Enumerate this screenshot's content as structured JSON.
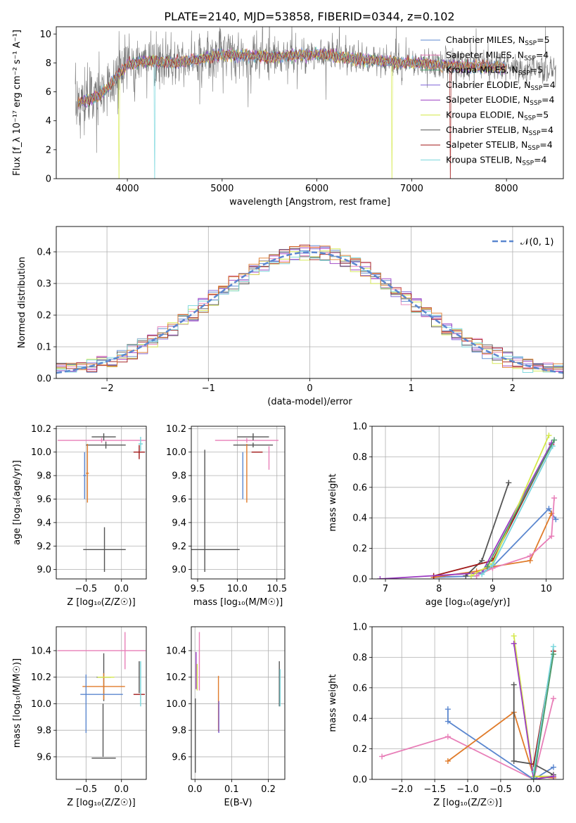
{
  "title": "PLATE=2140, MJD=53858, FIBERID=0344, z=0.102",
  "colors": {
    "Chabrier MILES": "#5b87cf",
    "Salpeter MILES": "#e87fb8",
    "Kroupa MILES": "#4d9a6a",
    "Chabrier ELODIE": "#7b5fd6",
    "Salpeter ELODIE": "#9b3bc2",
    "Kroupa ELODIE": "#d4e84a",
    "Chabrier STELIB": "#555555",
    "Salpeter STELIB": "#a01818",
    "Kroupa STELIB": "#77d6dc",
    "gaussian": "#5b87cf",
    "orange": "#e07b2a"
  },
  "chart_data": [
    {
      "type": "line",
      "id": "spectrum",
      "xlabel": "wavelength [Angstrom, rest frame]",
      "ylabel": "Flux [f_λ 10⁻¹⁷ erg cm⁻² s⁻¹ A⁻¹]",
      "xlim": [
        3250,
        8600
      ],
      "ylim": [
        0,
        10.5
      ],
      "xticks": [
        4000,
        5000,
        6000,
        7000,
        8000
      ],
      "yticks": [
        0,
        2,
        4,
        6,
        8,
        10
      ],
      "legend_position": "right",
      "legend": [
        "Chabrier MILES, NSSP=5",
        "Salpeter MILES, NSSP=4",
        "Kroupa MILES, NSSP=5",
        "Chabrier ELODIE, NSSP=4",
        "Salpeter ELODIE, NSSP=4",
        "Kroupa ELODIE, NSSP=5",
        "Chabrier STELIB, NSSP=4",
        "Salpeter STELIB, NSSP=4",
        "Kroupa STELIB, NSSP=4"
      ],
      "continuum": {
        "x": [
          3450,
          3600,
          3700,
          3800,
          3900,
          4000,
          4200,
          4500,
          4800,
          5000,
          5500,
          6000,
          6500,
          7000,
          7400,
          8000,
          8500
        ],
        "y": [
          5.2,
          5.4,
          5.7,
          6.3,
          7.2,
          7.9,
          8.1,
          8.0,
          8.3,
          8.6,
          8.4,
          8.6,
          8.2,
          8.0,
          7.8,
          7.7,
          7.5
        ]
      }
    },
    {
      "type": "line",
      "id": "residuals",
      "xlabel": "(data-model)/error",
      "ylabel": "Normed distribution",
      "xlim": [
        -2.5,
        2.5
      ],
      "ylim": [
        0,
        0.48
      ],
      "xticks": [
        -2,
        -1,
        0,
        1,
        2
      ],
      "yticks": [
        0.0,
        0.1,
        0.2,
        0.3,
        0.4
      ],
      "grid": true,
      "legend": [
        "𝒩(0, 1)"
      ],
      "legend_position": "top-right"
    },
    {
      "type": "scatter",
      "id": "age-vs-Z",
      "xlabel": "Z [log₁₀(Z/Z☉)]",
      "ylabel": "age  [log₁₀(age/yr)]",
      "xlim": [
        -0.92,
        0.35
      ],
      "ylim": [
        8.92,
        10.22
      ],
      "xticks": [
        -0.5,
        0.0
      ],
      "yticks": [
        9.0,
        9.2,
        9.4,
        9.6,
        9.8,
        10.0,
        10.2
      ],
      "grid": true,
      "points": [
        {
          "x": -0.28,
          "y": 10.1,
          "xerr": 0.62,
          "yerr": 0.02,
          "c": "Salpeter MILES"
        },
        {
          "x": -0.25,
          "y": 10.13,
          "xerr": 0.17,
          "yerr": 0.03,
          "c": "Chabrier STELIB"
        },
        {
          "x": -0.22,
          "y": 10.06,
          "xerr": 0.28,
          "yerr": 0.03,
          "c": "Chabrier STELIB"
        },
        {
          "x": -0.24,
          "y": 9.17,
          "xerr": 0.3,
          "yerr": 0.19,
          "c": "Chabrier STELIB"
        },
        {
          "x": -0.52,
          "y": 9.8,
          "xerr": 0.02,
          "yerr": 0.2,
          "c": "Chabrier MILES"
        },
        {
          "x": -0.48,
          "y": 9.82,
          "xerr": 0.02,
          "yerr": 0.25,
          "c": "orange"
        },
        {
          "x": 0.25,
          "y": 10.0,
          "xerr": 0.08,
          "yerr": 0.06,
          "c": "Salpeter STELIB"
        },
        {
          "x": 0.27,
          "y": 10.07,
          "xerr": 0.03,
          "yerr": 0.06,
          "c": "Kroupa STELIB"
        }
      ]
    },
    {
      "type": "scatter",
      "id": "age-vs-mass",
      "xlabel": "mass [log₁₀(M/M☉)]",
      "ylabel": "",
      "xlim": [
        9.42,
        10.6
      ],
      "ylim": [
        8.92,
        10.22
      ],
      "xticks": [
        9.5,
        10.0,
        10.5
      ],
      "yticks": [
        9.0,
        9.2,
        9.4,
        9.6,
        9.8,
        10.0,
        10.2
      ],
      "grid": true,
      "points": [
        {
          "x": 9.58,
          "y": 9.17,
          "xerr": 0.45,
          "yerr": 0.0,
          "c": "Chabrier STELIB"
        },
        {
          "x": 9.59,
          "y": 9.5,
          "xerr": 0.0,
          "yerr": 0.52,
          "c": "Chabrier STELIB"
        },
        {
          "x": 10.12,
          "y": 10.1,
          "xerr": 0.4,
          "yerr": 0.02,
          "c": "Salpeter MILES"
        },
        {
          "x": 10.2,
          "y": 10.13,
          "xerr": 0.2,
          "yerr": 0.03,
          "c": "Chabrier STELIB"
        },
        {
          "x": 10.2,
          "y": 10.06,
          "xerr": 0.25,
          "yerr": 0.02,
          "c": "Chabrier STELIB"
        },
        {
          "x": 10.07,
          "y": 9.8,
          "xerr": 0.0,
          "yerr": 0.2,
          "c": "Chabrier MILES"
        },
        {
          "x": 10.12,
          "y": 9.82,
          "xerr": 0.0,
          "yerr": 0.25,
          "c": "orange"
        },
        {
          "x": 10.25,
          "y": 10.0,
          "xerr": 0.07,
          "yerr": 0.0,
          "c": "Salpeter STELIB"
        },
        {
          "x": 10.4,
          "y": 9.95,
          "xerr": 0.0,
          "yerr": 0.1,
          "c": "Salpeter MILES"
        }
      ]
    },
    {
      "type": "line",
      "id": "mass-weight-vs-age",
      "xlabel": "age  [log₁₀(age/yr)]",
      "ylabel": "mass weight",
      "xlim": [
        6.75,
        10.32
      ],
      "ylim": [
        0,
        1
      ],
      "xticks": [
        7,
        8,
        9,
        10
      ],
      "yticks": [
        0.0,
        0.2,
        0.4,
        0.6,
        0.8,
        1.0
      ],
      "grid": true,
      "series": [
        {
          "c": "Chabrier MILES",
          "x": [
            7.9,
            8.7,
            9.0,
            10.05,
            10.18
          ],
          "y": [
            0.01,
            0.02,
            0.08,
            0.46,
            0.39
          ]
        },
        {
          "c": "orange",
          "x": [
            7.9,
            8.7,
            9.0,
            9.7,
            10.1
          ],
          "y": [
            0.01,
            0.05,
            0.08,
            0.12,
            0.43
          ]
        },
        {
          "c": "Salpeter MILES",
          "x": [
            8.7,
            9.0,
            9.7,
            10.1,
            10.15
          ],
          "y": [
            0.02,
            0.07,
            0.15,
            0.28,
            0.53
          ]
        },
        {
          "c": "Chabrier STELIB",
          "x": [
            8.5,
            8.8,
            9.3
          ],
          "y": [
            0.02,
            0.12,
            0.63
          ]
        },
        {
          "c": "Salpeter STELIB",
          "x": [
            7.9,
            9.0,
            10.1
          ],
          "y": [
            0.02,
            0.12,
            0.88
          ]
        },
        {
          "c": "Salpeter ELODIE",
          "x": [
            6.9,
            8.8,
            10.1
          ],
          "y": [
            0.0,
            0.04,
            0.89
          ]
        },
        {
          "c": "Kroupa ELODIE",
          "x": [
            8.6,
            9.0,
            10.05
          ],
          "y": [
            0.02,
            0.1,
            0.94
          ]
        },
        {
          "c": "Kroupa STELIB",
          "x": [
            8.8,
            9.0,
            10.12
          ],
          "y": [
            0.03,
            0.09,
            0.87
          ]
        },
        {
          "c": "Kroupa MILES",
          "x": [
            8.9,
            10.15
          ],
          "y": [
            0.08,
            0.91
          ]
        }
      ]
    },
    {
      "type": "scatter",
      "id": "mass-vs-Z",
      "xlabel": "Z [log₁₀(Z/Z☉)]",
      "ylabel": "mass [log₁₀(M/M☉)]",
      "xlim": [
        -0.92,
        0.35
      ],
      "ylim": [
        9.43,
        10.58
      ],
      "xticks": [
        -0.5,
        0.0
      ],
      "yticks": [
        9.6,
        9.8,
        10.0,
        10.2,
        10.4
      ],
      "grid": true,
      "points": [
        {
          "x": -0.28,
          "y": 10.4,
          "xerr": 0.62,
          "yerr": 0.0,
          "c": "Salpeter MILES"
        },
        {
          "x": 0.05,
          "y": 10.4,
          "xerr": 0.0,
          "yerr": 0.14,
          "c": "Salpeter MILES"
        },
        {
          "x": -0.25,
          "y": 10.2,
          "xerr": 0.1,
          "yerr": 0.18,
          "c": "Chabrier STELIB"
        },
        {
          "x": -0.25,
          "y": 10.13,
          "xerr": 0.3,
          "yerr": 0.1,
          "c": "orange"
        },
        {
          "x": -0.22,
          "y": 10.2,
          "xerr": 0.12,
          "yerr": 0.0,
          "c": "Kroupa ELODIE"
        },
        {
          "x": -0.25,
          "y": 9.59,
          "xerr": 0.17,
          "yerr": 0.0,
          "c": "Chabrier STELIB"
        },
        {
          "x": -0.26,
          "y": 9.8,
          "xerr": 0.0,
          "yerr": 0.2,
          "c": "Chabrier STELIB"
        },
        {
          "x": -0.28,
          "y": 10.07,
          "xerr": 0.3,
          "yerr": 0.0,
          "c": "Chabrier MILES"
        },
        {
          "x": -0.5,
          "y": 10.0,
          "xerr": 0.0,
          "yerr": 0.22,
          "c": "Chabrier MILES"
        },
        {
          "x": 0.25,
          "y": 10.07,
          "xerr": 0.08,
          "yerr": 0.0,
          "c": "Salpeter STELIB"
        },
        {
          "x": 0.27,
          "y": 10.15,
          "xerr": 0.0,
          "yerr": 0.17,
          "c": "Kroupa STELIB"
        },
        {
          "x": 0.25,
          "y": 10.2,
          "xerr": 0.0,
          "yerr": 0.12,
          "c": "Chabrier STELIB"
        }
      ]
    },
    {
      "type": "scatter",
      "id": "mass-vs-ebv",
      "xlabel": "E(B-V)",
      "ylabel": "",
      "xlim": [
        -0.01,
        0.245
      ],
      "ylim": [
        9.43,
        10.58
      ],
      "xticks": [
        0.0,
        0.1,
        0.2
      ],
      "yticks": [
        9.6,
        9.8,
        10.0,
        10.2,
        10.4
      ],
      "grid": true,
      "points": [
        {
          "x": 0.001,
          "y": 9.76,
          "xerr": 0.0,
          "yerr": 0.28,
          "c": "Chabrier STELIB"
        },
        {
          "x": 0.003,
          "y": 10.25,
          "xerr": 0.0,
          "yerr": 0.14,
          "c": "Salpeter ELODIE"
        },
        {
          "x": 0.006,
          "y": 10.2,
          "xerr": 0.0,
          "yerr": 0.1,
          "c": "Kroupa ELODIE"
        },
        {
          "x": 0.012,
          "y": 10.32,
          "xerr": 0.0,
          "yerr": 0.22,
          "c": "Salpeter MILES"
        },
        {
          "x": 0.064,
          "y": 10.0,
          "xerr": 0.0,
          "yerr": 0.21,
          "c": "orange"
        },
        {
          "x": 0.065,
          "y": 9.9,
          "xerr": 0.0,
          "yerr": 0.12,
          "c": "Chabrier ELODIE"
        },
        {
          "x": 0.23,
          "y": 10.15,
          "xerr": 0.0,
          "yerr": 0.17,
          "c": "Chabrier STELIB"
        },
        {
          "x": 0.232,
          "y": 10.12,
          "xerr": 0.0,
          "yerr": 0.14,
          "c": "Kroupa STELIB"
        }
      ]
    },
    {
      "type": "line",
      "id": "mass-weight-vs-Z",
      "xlabel": "Z [log₁₀(Z/Z☉)]",
      "ylabel": "mass weight",
      "xlim": [
        -2.45,
        0.45
      ],
      "ylim": [
        0,
        1
      ],
      "xticks": [
        -2.0,
        -1.5,
        -1.0,
        -0.5,
        0.0
      ],
      "yticks": [
        0.0,
        0.2,
        0.4,
        0.6,
        0.8,
        1.0
      ],
      "grid": true,
      "series": [
        {
          "c": "Salpeter MILES",
          "x": [
            -2.3,
            -1.3,
            0.0,
            0.3
          ],
          "y": [
            0.15,
            0.28,
            0.0,
            0.53
          ]
        },
        {
          "c": "Chabrier MILES",
          "x": [
            -1.3,
            -1.3,
            0.0,
            0.3
          ],
          "y": [
            0.46,
            0.38,
            0.0,
            0.08
          ]
        },
        {
          "c": "orange",
          "x": [
            -1.3,
            -0.3,
            0.0,
            0.3
          ],
          "y": [
            0.12,
            0.44,
            0.02,
            0.01
          ]
        },
        {
          "c": "Chabrier STELIB",
          "x": [
            -0.3,
            -0.3,
            0.0,
            0.3
          ],
          "y": [
            0.62,
            0.12,
            0.1,
            0.03
          ]
        },
        {
          "c": "Kroupa ELODIE",
          "x": [
            -0.3,
            0.0,
            0.3
          ],
          "y": [
            0.94,
            0.02,
            0.02
          ]
        },
        {
          "c": "Salpeter ELODIE",
          "x": [
            -0.3,
            0.0,
            0.3
          ],
          "y": [
            0.89,
            0.0,
            0.02
          ]
        },
        {
          "c": "Salpeter STELIB",
          "x": [
            0.0,
            0.3
          ],
          "y": [
            0.1,
            0.84
          ]
        },
        {
          "c": "Kroupa STELIB",
          "x": [
            0.0,
            0.3
          ],
          "y": [
            0.05,
            0.87
          ]
        },
        {
          "c": "Kroupa MILES",
          "x": [
            0.0,
            0.3
          ],
          "y": [
            0.0,
            0.82
          ]
        }
      ]
    }
  ]
}
